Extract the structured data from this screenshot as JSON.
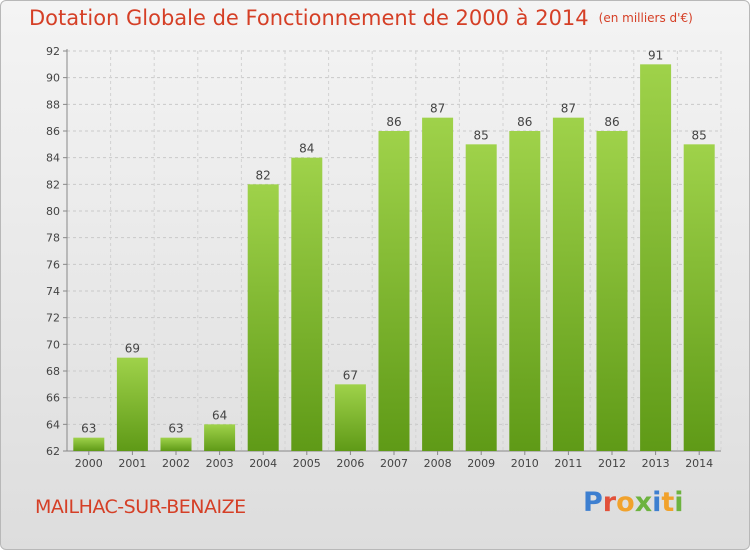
{
  "chart_data": {
    "type": "bar",
    "title": "Dotation Globale de Fonctionnement de 2000 à 2014",
    "subtitle": "(en milliers d'€)",
    "categories": [
      "2000",
      "2001",
      "2002",
      "2003",
      "2004",
      "2005",
      "2006",
      "2007",
      "2008",
      "2009",
      "2010",
      "2011",
      "2012",
      "2013",
      "2014"
    ],
    "values": [
      63,
      69,
      63,
      64,
      82,
      84,
      67,
      86,
      87,
      85,
      86,
      87,
      86,
      91,
      85
    ],
    "ylim": [
      62,
      92
    ],
    "yticks": [
      62,
      64,
      66,
      68,
      70,
      72,
      74,
      76,
      78,
      80,
      82,
      84,
      86,
      88,
      90,
      92
    ],
    "grid": true,
    "bar_color": "#7fbf2e"
  },
  "footer": {
    "commune": "MAILHAC-SUR-BENAIZE",
    "logo": "Proxiti"
  }
}
